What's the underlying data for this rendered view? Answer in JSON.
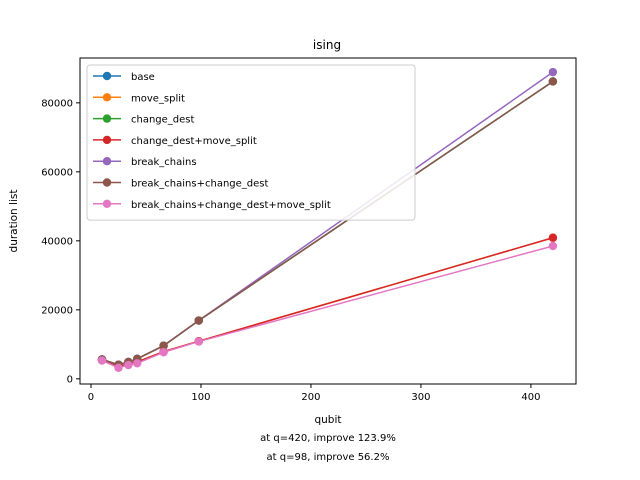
{
  "chart_data": {
    "type": "line",
    "title": "ising",
    "xlabel": "qubit",
    "ylabel": "duration list",
    "xlim": [
      -10,
      441
    ],
    "ylim": [
      -1500,
      93000
    ],
    "xticks": [
      0,
      100,
      200,
      300,
      400
    ],
    "yticks": [
      0,
      20000,
      40000,
      60000,
      80000
    ],
    "ytick_labels": [
      "0",
      "20000",
      "40000",
      "60000",
      "80000"
    ],
    "grid": false,
    "legend_position": "top-left",
    "captions": [
      "at q=420, improve 123.9%",
      "at q=98, improve 56.2%"
    ],
    "series": [
      {
        "name": "base",
        "color": "#1f77b4",
        "x": [
          10,
          25,
          34,
          42,
          66,
          98,
          420
        ],
        "y": [
          5600,
          4100,
          4900,
          5800,
          9600,
          16900,
          86200
        ]
      },
      {
        "name": "move_split",
        "color": "#ff7f0e",
        "x": [
          10,
          25,
          34,
          42,
          66,
          98,
          420
        ],
        "y": [
          5400,
          3600,
          4300,
          4900,
          7900,
          10900,
          40900
        ]
      },
      {
        "name": "change_dest",
        "color": "#2ca02c",
        "x": [
          10,
          25,
          34,
          42,
          66,
          98,
          420
        ],
        "y": [
          5600,
          4100,
          4900,
          5800,
          9600,
          16900,
          86200
        ]
      },
      {
        "name": "change_dest+move_split",
        "color": "#d62728",
        "x": [
          10,
          25,
          34,
          42,
          66,
          98,
          420
        ],
        "y": [
          5400,
          3600,
          4300,
          4900,
          7900,
          10900,
          40900
        ]
      },
      {
        "name": "break_chains",
        "color": "#9467bd",
        "x": [
          10,
          25,
          34,
          42,
          66,
          98,
          420
        ],
        "y": [
          5600,
          4100,
          4900,
          5800,
          9600,
          16900,
          88900
        ]
      },
      {
        "name": "break_chains+change_dest",
        "color": "#8c564b",
        "x": [
          10,
          25,
          34,
          42,
          66,
          98,
          420
        ],
        "y": [
          5600,
          4100,
          4900,
          5800,
          9600,
          16900,
          86200
        ]
      },
      {
        "name": "break_chains+change_dest+move_split",
        "color": "#e377c2",
        "x": [
          10,
          25,
          34,
          42,
          66,
          98,
          420
        ],
        "y": [
          5300,
          3200,
          4000,
          4500,
          7700,
          10800,
          38500
        ]
      }
    ]
  }
}
